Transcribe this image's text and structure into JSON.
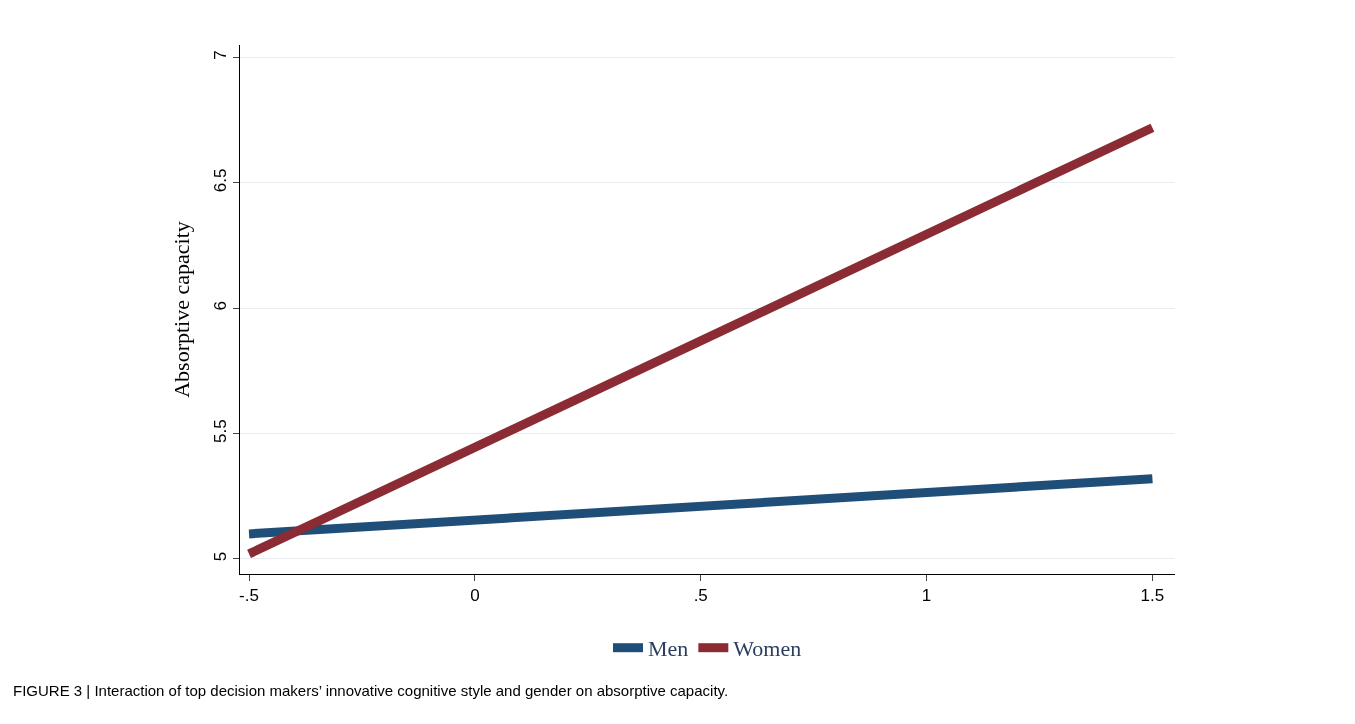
{
  "chart_data": {
    "type": "line",
    "ylabel": "Absorptive capacity",
    "x": [
      -0.5,
      1.5
    ],
    "series": [
      {
        "name": "Men",
        "color": "#1f4e79",
        "values": [
          5.1,
          5.32
        ]
      },
      {
        "name": "Women",
        "color": "#8b2c35",
        "values": [
          5.02,
          6.72
        ]
      }
    ],
    "xlim": [
      -0.52,
      1.55
    ],
    "ylim": [
      4.94,
      7.05
    ],
    "xticks": [
      {
        "value": -0.5,
        "label": "-.5"
      },
      0,
      {
        "value": 0.5,
        "label": ".5"
      },
      1,
      1.5
    ],
    "yticks": [
      5,
      5.5,
      6,
      6.5,
      7
    ],
    "grid": "y",
    "legend": "bottom",
    "line_style": "solid",
    "annotations": [
      "FIGURE 3 | Interaction of top decision makers’ innovative cognitive style and gender on absorptive capacity."
    ]
  }
}
